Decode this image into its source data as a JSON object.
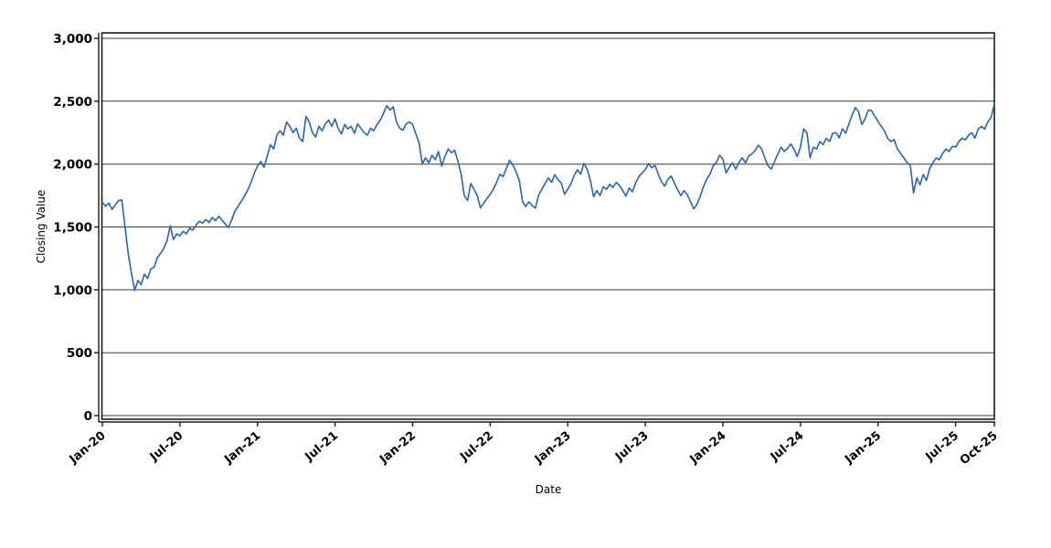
{
  "chart_data": {
    "type": "line",
    "title": "",
    "xlabel": "Date",
    "ylabel": "Closing Value",
    "legend": "none",
    "grid": "horizontal",
    "background_color": "#ffffff",
    "line_color": "#2f63a8",
    "grid_color": "#3c3c3c",
    "axis_color": "#1a1a1a",
    "text_color": "#000000",
    "ylim": [
      0,
      3000
    ],
    "y_ticks": [
      0,
      500,
      1000,
      1500,
      2000,
      2500,
      3000
    ],
    "y_tick_labels": [
      "0",
      "500",
      "1,000",
      "1,500",
      "2,000",
      "2,500",
      "3,000"
    ],
    "x_range_months": 69,
    "x_tick_months": [
      0,
      6,
      12,
      18,
      24,
      30,
      36,
      42,
      48,
      54,
      60,
      66,
      69
    ],
    "x_tick_labels": [
      "Jan-20",
      "Jul-20",
      "Jan-21",
      "Jul-21",
      "Jan-22",
      "Jul-22",
      "Jan-23",
      "Jul-23",
      "Jan-24",
      "Jul-24",
      "Jan-25",
      "Jul-25",
      "Oct-25"
    ],
    "series": [
      {
        "name": "Closing Value",
        "points_per_month": 4,
        "start_label": "Jan-20",
        "end_label": "Oct-25",
        "values": [
          1695,
          1665,
          1690,
          1640,
          1675,
          1710,
          1715,
          1505,
          1290,
          1130,
          995,
          1075,
          1040,
          1125,
          1090,
          1165,
          1180,
          1255,
          1290,
          1330,
          1390,
          1510,
          1400,
          1445,
          1430,
          1465,
          1445,
          1490,
          1475,
          1515,
          1545,
          1530,
          1560,
          1535,
          1575,
          1550,
          1585,
          1555,
          1525,
          1495,
          1555,
          1625,
          1665,
          1705,
          1745,
          1795,
          1855,
          1925,
          1985,
          2020,
          1975,
          2060,
          2155,
          2120,
          2230,
          2265,
          2230,
          2335,
          2300,
          2250,
          2285,
          2205,
          2180,
          2380,
          2335,
          2250,
          2215,
          2300,
          2265,
          2320,
          2350,
          2300,
          2360,
          2280,
          2240,
          2315,
          2280,
          2300,
          2245,
          2320,
          2285,
          2250,
          2230,
          2285,
          2265,
          2315,
          2350,
          2405,
          2465,
          2430,
          2455,
          2335,
          2285,
          2270,
          2320,
          2335,
          2315,
          2240,
          2170,
          2000,
          2050,
          2010,
          2070,
          2035,
          2100,
          1985,
          2060,
          2120,
          2090,
          2110,
          2025,
          1920,
          1750,
          1710,
          1845,
          1800,
          1748,
          1652,
          1690,
          1725,
          1760,
          1800,
          1855,
          1920,
          1900,
          1965,
          2030,
          1995,
          1940,
          1870,
          1705,
          1663,
          1700,
          1670,
          1650,
          1755,
          1800,
          1845,
          1890,
          1855,
          1915,
          1875,
          1850,
          1760,
          1800,
          1845,
          1910,
          1955,
          1920,
          2005,
          1960,
          1870,
          1740,
          1790,
          1750,
          1820,
          1800,
          1840,
          1815,
          1855,
          1830,
          1790,
          1745,
          1810,
          1780,
          1850,
          1900,
          1930,
          1955,
          2005,
          1970,
          1990,
          1920,
          1860,
          1825,
          1880,
          1905,
          1850,
          1795,
          1748,
          1790,
          1755,
          1700,
          1645,
          1680,
          1745,
          1820,
          1880,
          1920,
          1985,
          2015,
          2070,
          2040,
          1930,
          1975,
          2010,
          1960,
          2015,
          2050,
          2010,
          2065,
          2080,
          2110,
          2150,
          2120,
          2045,
          1985,
          1960,
          2020,
          2080,
          2135,
          2100,
          2125,
          2160,
          2120,
          2060,
          2135,
          2280,
          2250,
          2050,
          2135,
          2120,
          2180,
          2155,
          2205,
          2180,
          2245,
          2250,
          2210,
          2280,
          2245,
          2320,
          2390,
          2450,
          2415,
          2315,
          2360,
          2430,
          2425,
          2380,
          2340,
          2300,
          2265,
          2205,
          2180,
          2195,
          2120,
          2085,
          2050,
          2012,
          1990,
          1770,
          1890,
          1835,
          1918,
          1870,
          1965,
          2012,
          2048,
          2035,
          2085,
          2120,
          2100,
          2142,
          2135,
          2178,
          2206,
          2192,
          2228,
          2250,
          2206,
          2278,
          2300,
          2278,
          2336,
          2372,
          2480
        ]
      }
    ]
  }
}
